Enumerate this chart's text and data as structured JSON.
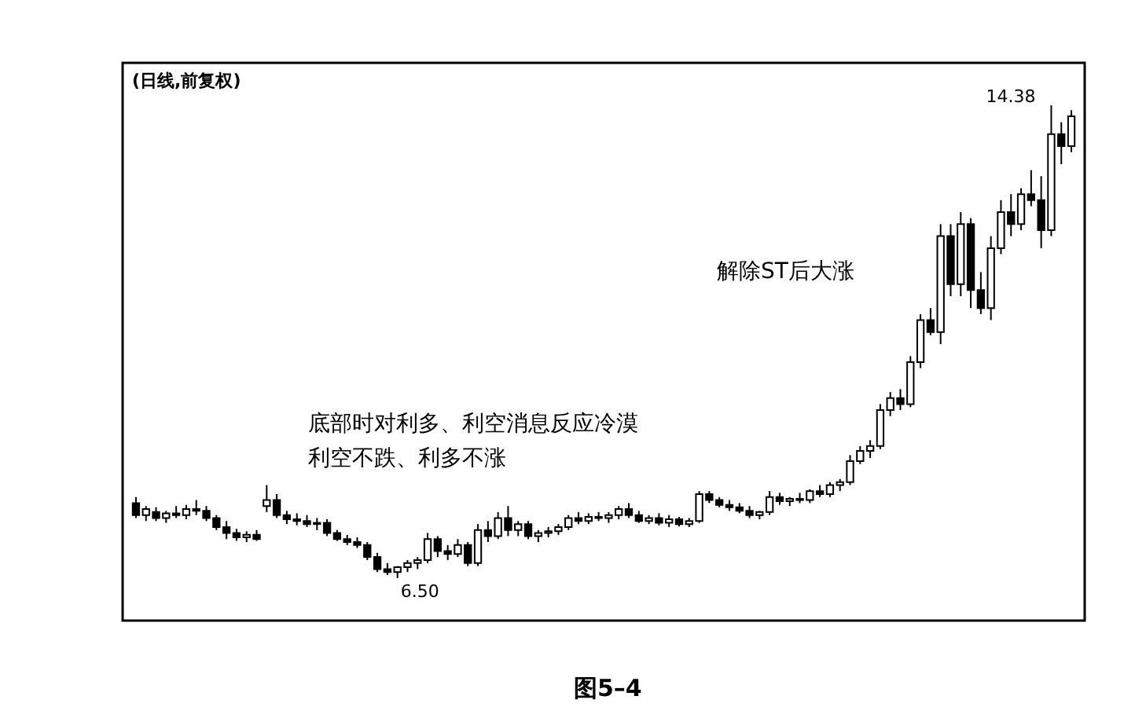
{
  "chart_data": {
    "type": "candlestick",
    "title": "(日线,前复权)",
    "categories": [
      null,
      null,
      null,
      null,
      null,
      null,
      null,
      null,
      null,
      null,
      null,
      null,
      null,
      null,
      null,
      null,
      null,
      null,
      null,
      null,
      null,
      null,
      null,
      null,
      null,
      null,
      null,
      null,
      null,
      null,
      null,
      null,
      null,
      null,
      null,
      null,
      null,
      null,
      null,
      null,
      null,
      null,
      null,
      null,
      null,
      null,
      null,
      null,
      null,
      null,
      null,
      null,
      null,
      null,
      null,
      null,
      null,
      null,
      null,
      null,
      null,
      null,
      null,
      null,
      null,
      null,
      null,
      null,
      null,
      null,
      null,
      null,
      null,
      null,
      null,
      null,
      null,
      null,
      null,
      null,
      null,
      null,
      null,
      null,
      null,
      null,
      null,
      null,
      null,
      null,
      null,
      null,
      null,
      null
    ],
    "ohlc": [
      [
        7.75,
        7.85,
        7.5,
        7.55
      ],
      [
        7.55,
        7.7,
        7.45,
        7.65
      ],
      [
        7.6,
        7.68,
        7.45,
        7.5
      ],
      [
        7.5,
        7.62,
        7.42,
        7.58
      ],
      [
        7.58,
        7.7,
        7.5,
        7.55
      ],
      [
        7.55,
        7.72,
        7.48,
        7.65
      ],
      [
        7.65,
        7.8,
        7.55,
        7.62
      ],
      [
        7.62,
        7.7,
        7.45,
        7.5
      ],
      [
        7.5,
        7.55,
        7.3,
        7.35
      ],
      [
        7.35,
        7.45,
        7.15,
        7.25
      ],
      [
        7.25,
        7.32,
        7.12,
        7.18
      ],
      [
        7.18,
        7.28,
        7.1,
        7.22
      ],
      [
        7.22,
        7.3,
        7.12,
        7.15
      ],
      [
        7.7,
        8.05,
        7.6,
        7.8
      ],
      [
        7.8,
        7.9,
        7.5,
        7.55
      ],
      [
        7.55,
        7.62,
        7.4,
        7.48
      ],
      [
        7.48,
        7.58,
        7.38,
        7.45
      ],
      [
        7.45,
        7.55,
        7.35,
        7.4
      ],
      [
        7.4,
        7.5,
        7.3,
        7.42
      ],
      [
        7.42,
        7.48,
        7.2,
        7.25
      ],
      [
        7.25,
        7.3,
        7.12,
        7.15
      ],
      [
        7.15,
        7.22,
        7.05,
        7.1
      ],
      [
        7.1,
        7.18,
        7.0,
        7.05
      ],
      [
        7.05,
        7.1,
        6.8,
        6.85
      ],
      [
        6.85,
        6.92,
        6.6,
        6.65
      ],
      [
        6.65,
        6.75,
        6.55,
        6.6
      ],
      [
        6.6,
        6.7,
        6.5,
        6.68
      ],
      [
        6.68,
        6.8,
        6.6,
        6.75
      ],
      [
        6.75,
        6.85,
        6.65,
        6.8
      ],
      [
        6.8,
        7.25,
        6.75,
        7.15
      ],
      [
        7.15,
        7.2,
        6.85,
        6.95
      ],
      [
        6.95,
        7.05,
        6.8,
        6.9
      ],
      [
        6.9,
        7.15,
        6.85,
        7.05
      ],
      [
        7.05,
        7.1,
        6.7,
        6.75
      ],
      [
        6.75,
        7.4,
        6.7,
        7.3
      ],
      [
        7.3,
        7.45,
        7.1,
        7.2
      ],
      [
        7.2,
        7.6,
        7.15,
        7.5
      ],
      [
        7.5,
        7.7,
        7.2,
        7.3
      ],
      [
        7.3,
        7.45,
        7.2,
        7.4
      ],
      [
        7.4,
        7.45,
        7.15,
        7.2
      ],
      [
        7.2,
        7.3,
        7.1,
        7.25
      ],
      [
        7.25,
        7.35,
        7.18,
        7.28
      ],
      [
        7.28,
        7.4,
        7.22,
        7.35
      ],
      [
        7.35,
        7.55,
        7.3,
        7.5
      ],
      [
        7.5,
        7.6,
        7.4,
        7.45
      ],
      [
        7.45,
        7.58,
        7.4,
        7.52
      ],
      [
        7.52,
        7.6,
        7.45,
        7.5
      ],
      [
        7.5,
        7.6,
        7.42,
        7.55
      ],
      [
        7.55,
        7.7,
        7.48,
        7.65
      ],
      [
        7.65,
        7.75,
        7.5,
        7.55
      ],
      [
        7.55,
        7.62,
        7.42,
        7.45
      ],
      [
        7.45,
        7.55,
        7.4,
        7.5
      ],
      [
        7.5,
        7.58,
        7.38,
        7.42
      ],
      [
        7.42,
        7.55,
        7.35,
        7.48
      ],
      [
        7.48,
        7.52,
        7.36,
        7.4
      ],
      [
        7.4,
        7.5,
        7.35,
        7.45
      ],
      [
        7.45,
        7.95,
        7.42,
        7.9
      ],
      [
        7.9,
        7.95,
        7.75,
        7.8
      ],
      [
        7.8,
        7.85,
        7.68,
        7.72
      ],
      [
        7.72,
        7.8,
        7.62,
        7.68
      ],
      [
        7.68,
        7.75,
        7.58,
        7.62
      ],
      [
        7.62,
        7.7,
        7.5,
        7.55
      ],
      [
        7.55,
        7.62,
        7.48,
        7.6
      ],
      [
        7.6,
        7.95,
        7.55,
        7.85
      ],
      [
        7.85,
        7.92,
        7.72,
        7.78
      ],
      [
        7.78,
        7.85,
        7.7,
        7.82
      ],
      [
        7.82,
        7.92,
        7.75,
        7.8
      ],
      [
        7.8,
        7.98,
        7.75,
        7.95
      ],
      [
        7.95,
        8.05,
        7.85,
        7.9
      ],
      [
        7.9,
        8.1,
        7.85,
        8.05
      ],
      [
        8.05,
        8.15,
        7.95,
        8.1
      ],
      [
        8.1,
        8.55,
        8.05,
        8.45
      ],
      [
        8.45,
        8.7,
        8.4,
        8.62
      ],
      [
        8.62,
        8.8,
        8.5,
        8.7
      ],
      [
        8.7,
        9.4,
        8.65,
        9.3
      ],
      [
        9.3,
        9.6,
        9.2,
        9.5
      ],
      [
        9.5,
        9.65,
        9.3,
        9.4
      ],
      [
        9.4,
        10.2,
        9.35,
        10.1
      ],
      [
        10.1,
        10.9,
        10.0,
        10.8
      ],
      [
        10.8,
        11.0,
        10.55,
        10.6
      ],
      [
        10.6,
        12.4,
        10.4,
        12.2
      ],
      [
        12.2,
        12.4,
        11.2,
        11.4
      ],
      [
        11.4,
        12.6,
        11.2,
        12.4
      ],
      [
        12.4,
        12.5,
        11.0,
        11.3
      ],
      [
        11.3,
        11.6,
        10.9,
        11.0
      ],
      [
        11.0,
        12.2,
        10.8,
        12.0
      ],
      [
        12.0,
        12.8,
        11.9,
        12.6
      ],
      [
        12.6,
        12.9,
        12.2,
        12.4
      ],
      [
        12.4,
        13.0,
        12.3,
        12.9
      ],
      [
        12.9,
        13.3,
        12.7,
        12.8
      ],
      [
        12.8,
        13.2,
        12.0,
        12.3
      ],
      [
        12.3,
        14.38,
        12.2,
        13.9
      ],
      [
        13.9,
        14.1,
        13.4,
        13.7
      ],
      [
        13.7,
        14.3,
        13.6,
        14.2
      ]
    ],
    "color": "#000000",
    "annotations": [
      "底部时对利多、利空消息反应冷漠",
      "利空不跌、利多不涨",
      "解除ST后大涨",
      "14.38",
      "6.50",
      "图5–4"
    ]
  }
}
